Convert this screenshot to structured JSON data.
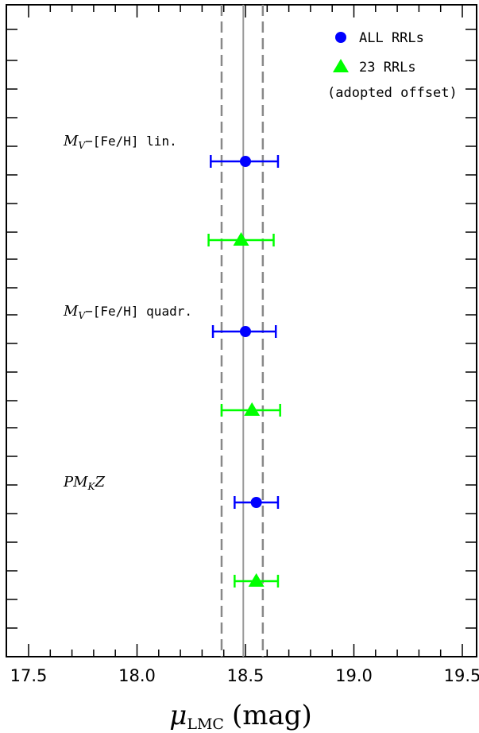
{
  "chart_data": {
    "type": "scatter",
    "xlabel": {
      "symbol": "μ",
      "subscript": "LMC",
      "unit": "(mag)"
    },
    "xlim": [
      17.4,
      19.6
    ],
    "xticks": [
      "17.5",
      "18.0",
      "18.5",
      "19.0",
      "19.5"
    ],
    "reference_lines": {
      "solid": 18.49,
      "dashed": [
        18.39,
        18.58
      ]
    },
    "colors": {
      "all": "#0000ff",
      "adopted": "#00ff00",
      "solid_line": "#999999",
      "dashed_line": "#888888"
    },
    "series": [
      {
        "name": "ALL RRLs",
        "marker": "circle",
        "color": "#0000ff"
      },
      {
        "name": "23 RRLs",
        "name_line2": "(adopted offset)",
        "marker": "triangle",
        "color": "#00ff00"
      }
    ],
    "groups": [
      {
        "label": {
          "main": "M",
          "sub": "V",
          "rest": "−[Fe/H] lin."
        },
        "points": [
          {
            "series": 0,
            "x": 18.5,
            "xerr_low": 0.16,
            "xerr_high": 0.15
          },
          {
            "series": 1,
            "x": 18.48,
            "xerr_low": 0.15,
            "xerr_high": 0.15
          }
        ]
      },
      {
        "label": {
          "main": "M",
          "sub": "V",
          "rest": "−[Fe/H] quadr."
        },
        "points": [
          {
            "series": 0,
            "x": 18.5,
            "xerr_low": 0.15,
            "xerr_high": 0.14
          },
          {
            "series": 1,
            "x": 18.53,
            "xerr_low": 0.14,
            "xerr_high": 0.13
          }
        ]
      },
      {
        "label": {
          "main": "PM",
          "sub": "K",
          "rest": "Z"
        },
        "points": [
          {
            "series": 0,
            "x": 18.55,
            "xerr_low": 0.1,
            "xerr_high": 0.1
          },
          {
            "series": 1,
            "x": 18.55,
            "xerr_low": 0.1,
            "xerr_high": 0.1
          }
        ]
      }
    ]
  }
}
